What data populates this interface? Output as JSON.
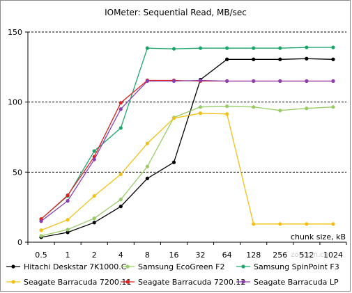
{
  "chart_data": {
    "type": "line",
    "title": "IOMeter: Sequential Read, MB/sec",
    "xlabel": "chunk size, kB",
    "ylabel": "",
    "categories": [
      "0.5",
      "1",
      "2",
      "4",
      "8",
      "16",
      "32",
      "64",
      "128",
      "256",
      "512",
      "1024"
    ],
    "ylim": [
      0,
      150
    ],
    "yticks": [
      "0",
      "50",
      "100",
      "150"
    ],
    "grid": "horizontal dashed",
    "legend_position": "bottom",
    "series": [
      {
        "name": "Hitachi Deskstar 7K1000.C",
        "color": "#000000",
        "values": [
          3.5,
          7,
          14,
          25.5,
          45.5,
          57,
          116,
          130.5,
          130.5,
          130.5,
          131,
          130.5
        ]
      },
      {
        "name": "Samsung EcoGreen F2",
        "color": "#99cc66",
        "values": [
          4.5,
          9,
          17,
          30.5,
          54,
          89,
          96.5,
          97,
          96.5,
          94,
          95.5,
          96.5
        ]
      },
      {
        "name": "Samsung SpinPoint F3",
        "color": "#1aa66b",
        "values": [
          16.5,
          33,
          65,
          81.5,
          138.5,
          138,
          138.5,
          138.5,
          138.5,
          138.5,
          139,
          139
        ]
      },
      {
        "name": "Seagate Barracuda 7200.11",
        "color": "#f2c012",
        "values": [
          8.5,
          16,
          33,
          48.5,
          70.5,
          88.5,
          92,
          91.5,
          13,
          13,
          13,
          13
        ]
      },
      {
        "name": "Seagate Barracuda 7200.12",
        "color": "#e02020",
        "values": [
          16.5,
          33.5,
          61,
          99.5,
          115.5,
          115.5,
          115,
          115,
          115,
          115,
          115,
          115
        ]
      },
      {
        "name": "Seagate Barracuda LP",
        "color": "#8a3fb0",
        "values": [
          15,
          29.5,
          59,
          95,
          115,
          115,
          115.5,
          115,
          115,
          115,
          115,
          115
        ]
      }
    ]
  },
  "watermark": "zol.com.cn"
}
